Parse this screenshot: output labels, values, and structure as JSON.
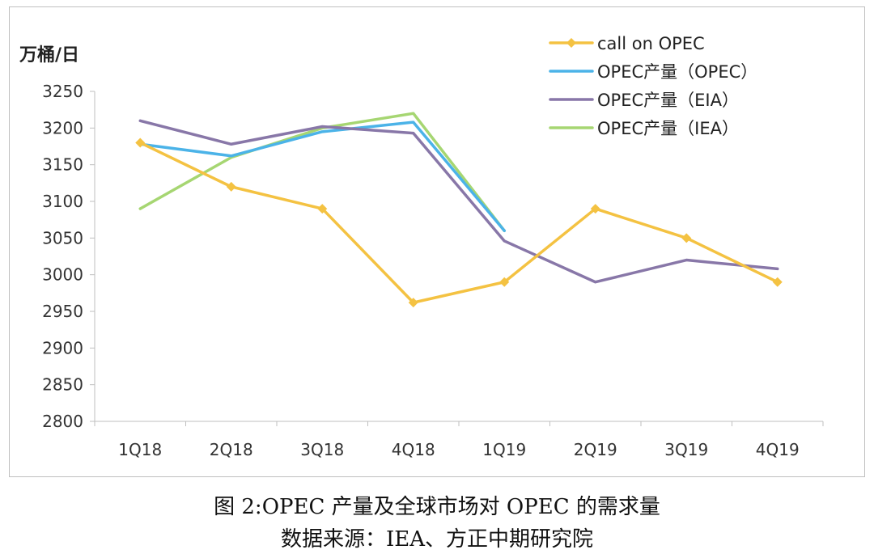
{
  "chart_data": {
    "type": "line",
    "ylabel": "万桶/日",
    "categories": [
      "1Q18",
      "2Q18",
      "3Q18",
      "4Q18",
      "1Q19",
      "2Q19",
      "3Q19",
      "4Q19"
    ],
    "ylim": [
      2800,
      3250
    ],
    "yticks": [
      2800,
      2850,
      2900,
      2950,
      3000,
      3050,
      3100,
      3150,
      3200,
      3250
    ],
    "grid": false,
    "legend_position": "top-right",
    "series": [
      {
        "name": "call on OPEC",
        "color": "#f4c242",
        "marker": "diamond",
        "values": [
          3180,
          3120,
          3090,
          2962,
          2990,
          3090,
          3050,
          2990
        ]
      },
      {
        "name": "OPEC产量（OPEC）",
        "color": "#4bb3e8",
        "marker": "none",
        "values": [
          3178,
          3162,
          3195,
          3208,
          3060,
          null,
          null,
          null
        ]
      },
      {
        "name": "OPEC产量（EIA）",
        "color": "#8877a8",
        "marker": "none",
        "values": [
          3210,
          3178,
          3202,
          3193,
          3046,
          2990,
          3020,
          3008
        ]
      },
      {
        "name": "OPEC产量（IEA）",
        "color": "#a6d672",
        "marker": "none",
        "values": [
          3090,
          3160,
          3200,
          3220,
          3060,
          null,
          null,
          null
        ]
      }
    ]
  },
  "caption": {
    "title": "图 2:OPEC 产量及全球市场对 OPEC 的需求量",
    "source": "数据来源：IEA、方正中期研究院"
  }
}
